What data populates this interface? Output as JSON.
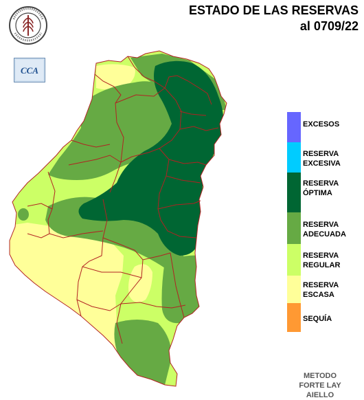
{
  "title": {
    "line1": "ESTADO DE LAS RESERVAS",
    "line2": "al 0709/22"
  },
  "logos": {
    "seal_text": "BOLSA DE CEREALES DE ENTRE RIOS",
    "cca_text": "CCA"
  },
  "legend": [
    {
      "label": "EXCESOS",
      "color": "#6666ff"
    },
    {
      "label": "RESERVA\nEXCESIVA",
      "color": "#00ccff"
    },
    {
      "label": "RESERVA\nÓPTIMA",
      "color": "#006633"
    },
    {
      "label": "RESERVA\nADECUADA",
      "color": "#66aa44"
    },
    {
      "label": "RESERVA\nREGULAR",
      "color": "#ccff66"
    },
    {
      "label": "RESERVA\nESCASA",
      "color": "#ffff99"
    },
    {
      "label": "SEQUÍA",
      "color": "#ff9933"
    }
  ],
  "colors": {
    "escasa": "#ffff99",
    "regular": "#ccff66",
    "adecuada": "#66aa44",
    "optima": "#006633",
    "borders": "#b22222"
  },
  "method": "METODO\nFORTE LAY\nAIELLO"
}
